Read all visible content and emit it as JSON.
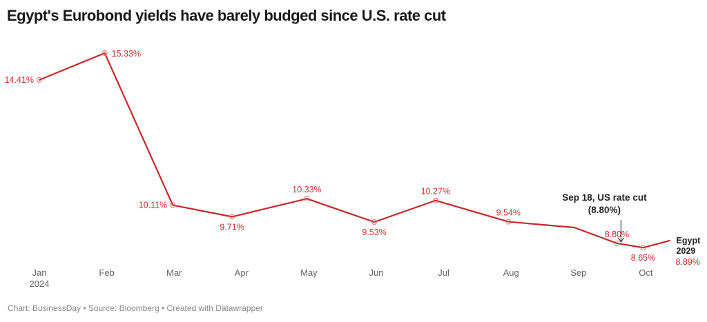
{
  "chart_data": {
    "type": "line",
    "title": "Egypt's Eurobond yields have barely budged since U.S. rate cut",
    "xlabel": "",
    "ylabel": "",
    "y_unit": "%",
    "ylim": [
      8.0,
      15.5
    ],
    "grid": false,
    "x_ticks": [
      {
        "label": "Jan",
        "sub": "2024",
        "pos": 0
      },
      {
        "label": "Feb",
        "pos": 1
      },
      {
        "label": "Mar",
        "pos": 2
      },
      {
        "label": "Apr",
        "pos": 3
      },
      {
        "label": "May",
        "pos": 4
      },
      {
        "label": "Jun",
        "pos": 5
      },
      {
        "label": "Jul",
        "pos": 6
      },
      {
        "label": "Aug",
        "pos": 7
      },
      {
        "label": "Sep",
        "pos": 8
      },
      {
        "label": "Oct",
        "pos": 9
      }
    ],
    "series": [
      {
        "name": "Egypt 2029",
        "color": "#c62828",
        "last_value_label": "8.89%",
        "points": [
          {
            "x": 0.0,
            "value": 14.41,
            "label": "14.41%",
            "label_pos": "left"
          },
          {
            "x": 0.97,
            "value": 15.33,
            "label": "15.33%",
            "label_pos": "right"
          },
          {
            "x": 1.98,
            "value": 10.11,
            "label": "10.11%",
            "label_pos": "left"
          },
          {
            "x": 2.86,
            "value": 9.71,
            "label": "9.71%",
            "label_pos": "below"
          },
          {
            "x": 3.97,
            "value": 10.33,
            "label": "10.33%",
            "label_pos": "above"
          },
          {
            "x": 4.97,
            "value": 9.53,
            "label": "9.53%",
            "label_pos": "below"
          },
          {
            "x": 5.88,
            "value": 10.27,
            "label": "10.27%",
            "label_pos": "above"
          },
          {
            "x": 6.96,
            "value": 9.54,
            "label": "9.54%",
            "label_pos": "above"
          },
          {
            "x": 7.94,
            "value": 9.34,
            "label": null
          },
          {
            "x": 8.57,
            "value": 8.8,
            "label": "8.80%",
            "label_pos": "above"
          },
          {
            "x": 8.96,
            "value": 8.65,
            "label": "8.65%",
            "label_pos": "below"
          },
          {
            "x": 9.35,
            "value": 8.89,
            "label": null
          }
        ]
      }
    ],
    "annotations": [
      {
        "text_line1": "Sep 18, US rate cut",
        "text_line2": "(8.80%)",
        "target_x": 8.57,
        "target_value": 8.8,
        "arrow": true
      }
    ]
  },
  "footer": {
    "text": "Chart: BusinessDay • Source: Bloomberg • Created with Datawrapper"
  }
}
